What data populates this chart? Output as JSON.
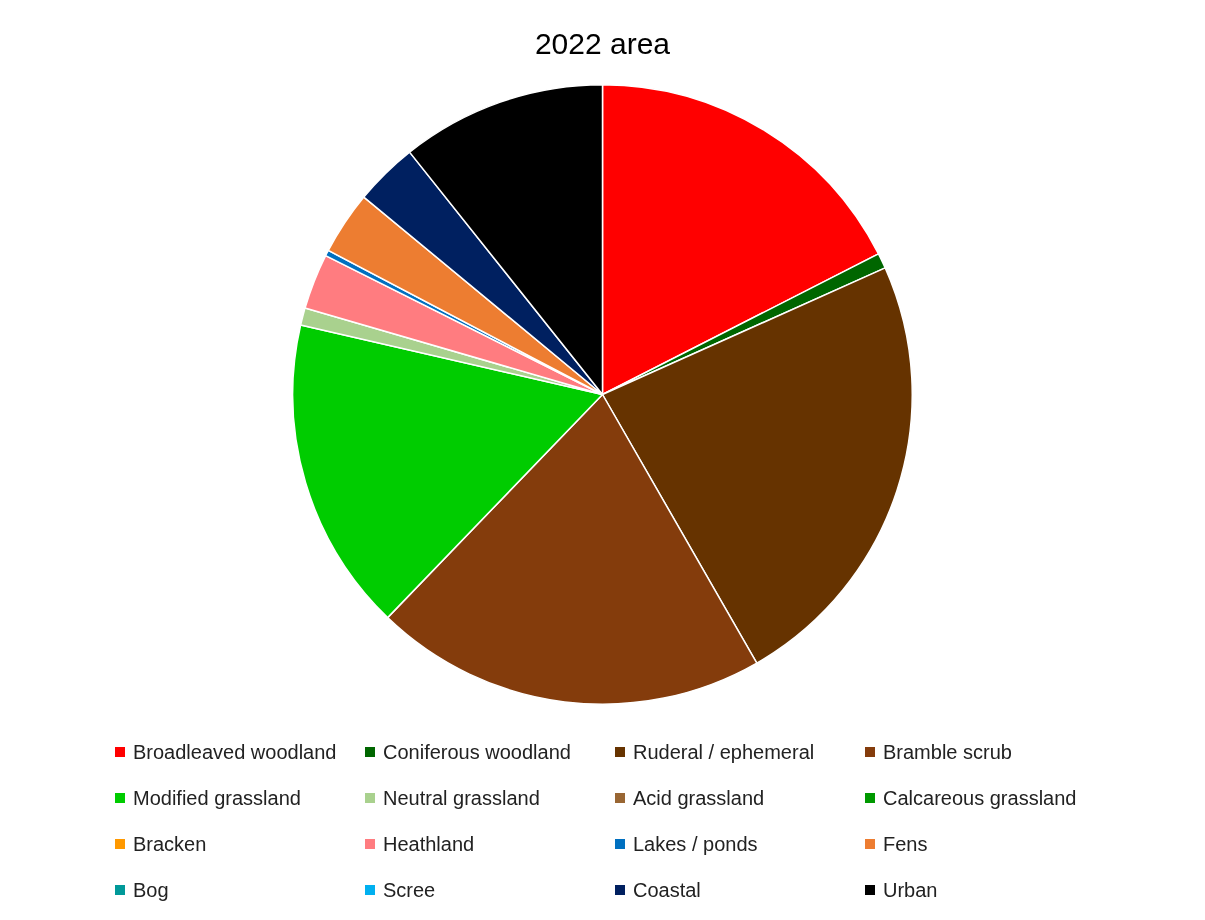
{
  "chart_data": {
    "type": "pie",
    "title": "2022 area",
    "categories": [
      "Broadleaved woodland",
      "Coniferous woodland",
      "Ruderal / ephemeral",
      "Bramble scrub",
      "Modified grassland",
      "Neutral grassland",
      "Acid grassland",
      "Calcareous grassland",
      "Bracken",
      "Heathland",
      "Lakes / ponds",
      "Fens",
      "Bog",
      "Scree",
      "Coastal",
      "Urban"
    ],
    "values": [
      17.5,
      0.8,
      23.4,
      20.5,
      16.4,
      0.9,
      0,
      0,
      0,
      2.9,
      0.3,
      3.3,
      0,
      0,
      3.3,
      10.7
    ],
    "colors": [
      "#ff0000",
      "#006600",
      "#663300",
      "#843c0c",
      "#00cc00",
      "#a9d18e",
      "#996633",
      "#009900",
      "#ff9900",
      "#ff7c80",
      "#0070c0",
      "#ed7d31",
      "#009999",
      "#00b0f0",
      "#002060",
      "#000000"
    ],
    "legend": "bottom"
  }
}
